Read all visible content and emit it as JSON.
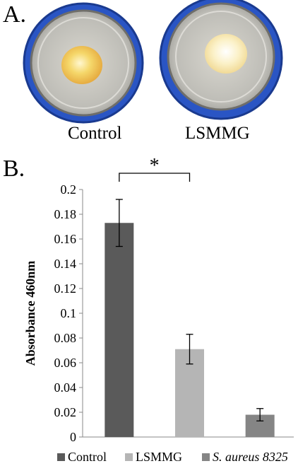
{
  "panel_a": {
    "label": "A.",
    "captions": [
      "Control",
      "LSMMG"
    ]
  },
  "panel_b": {
    "label": "B.",
    "significance_marker": "*"
  },
  "colors": {
    "control": "#5a5a5a",
    "lsmmg": "#b5b5b5",
    "aureus": "#858585",
    "cap_blue": "#2a55c4",
    "pigment_yellow": "#f0c84a"
  },
  "chart_data": {
    "type": "bar",
    "categories": [
      "Control",
      "LSMMG",
      "S. aureus 8325"
    ],
    "values": [
      0.173,
      0.071,
      0.018
    ],
    "errors": [
      0.019,
      0.012,
      0.005
    ],
    "ylabel": "Absorbance 460nm",
    "ylim": [
      0,
      0.2
    ],
    "yticks": [
      "0",
      "0.02",
      "0.04",
      "0.06",
      "0.08",
      "0.1",
      "0.12",
      "0.14",
      "0.16",
      "0.18",
      "0.2"
    ],
    "grid": false,
    "legend_position": "bottom",
    "significance": {
      "between": [
        0,
        1
      ],
      "label": "*"
    }
  }
}
